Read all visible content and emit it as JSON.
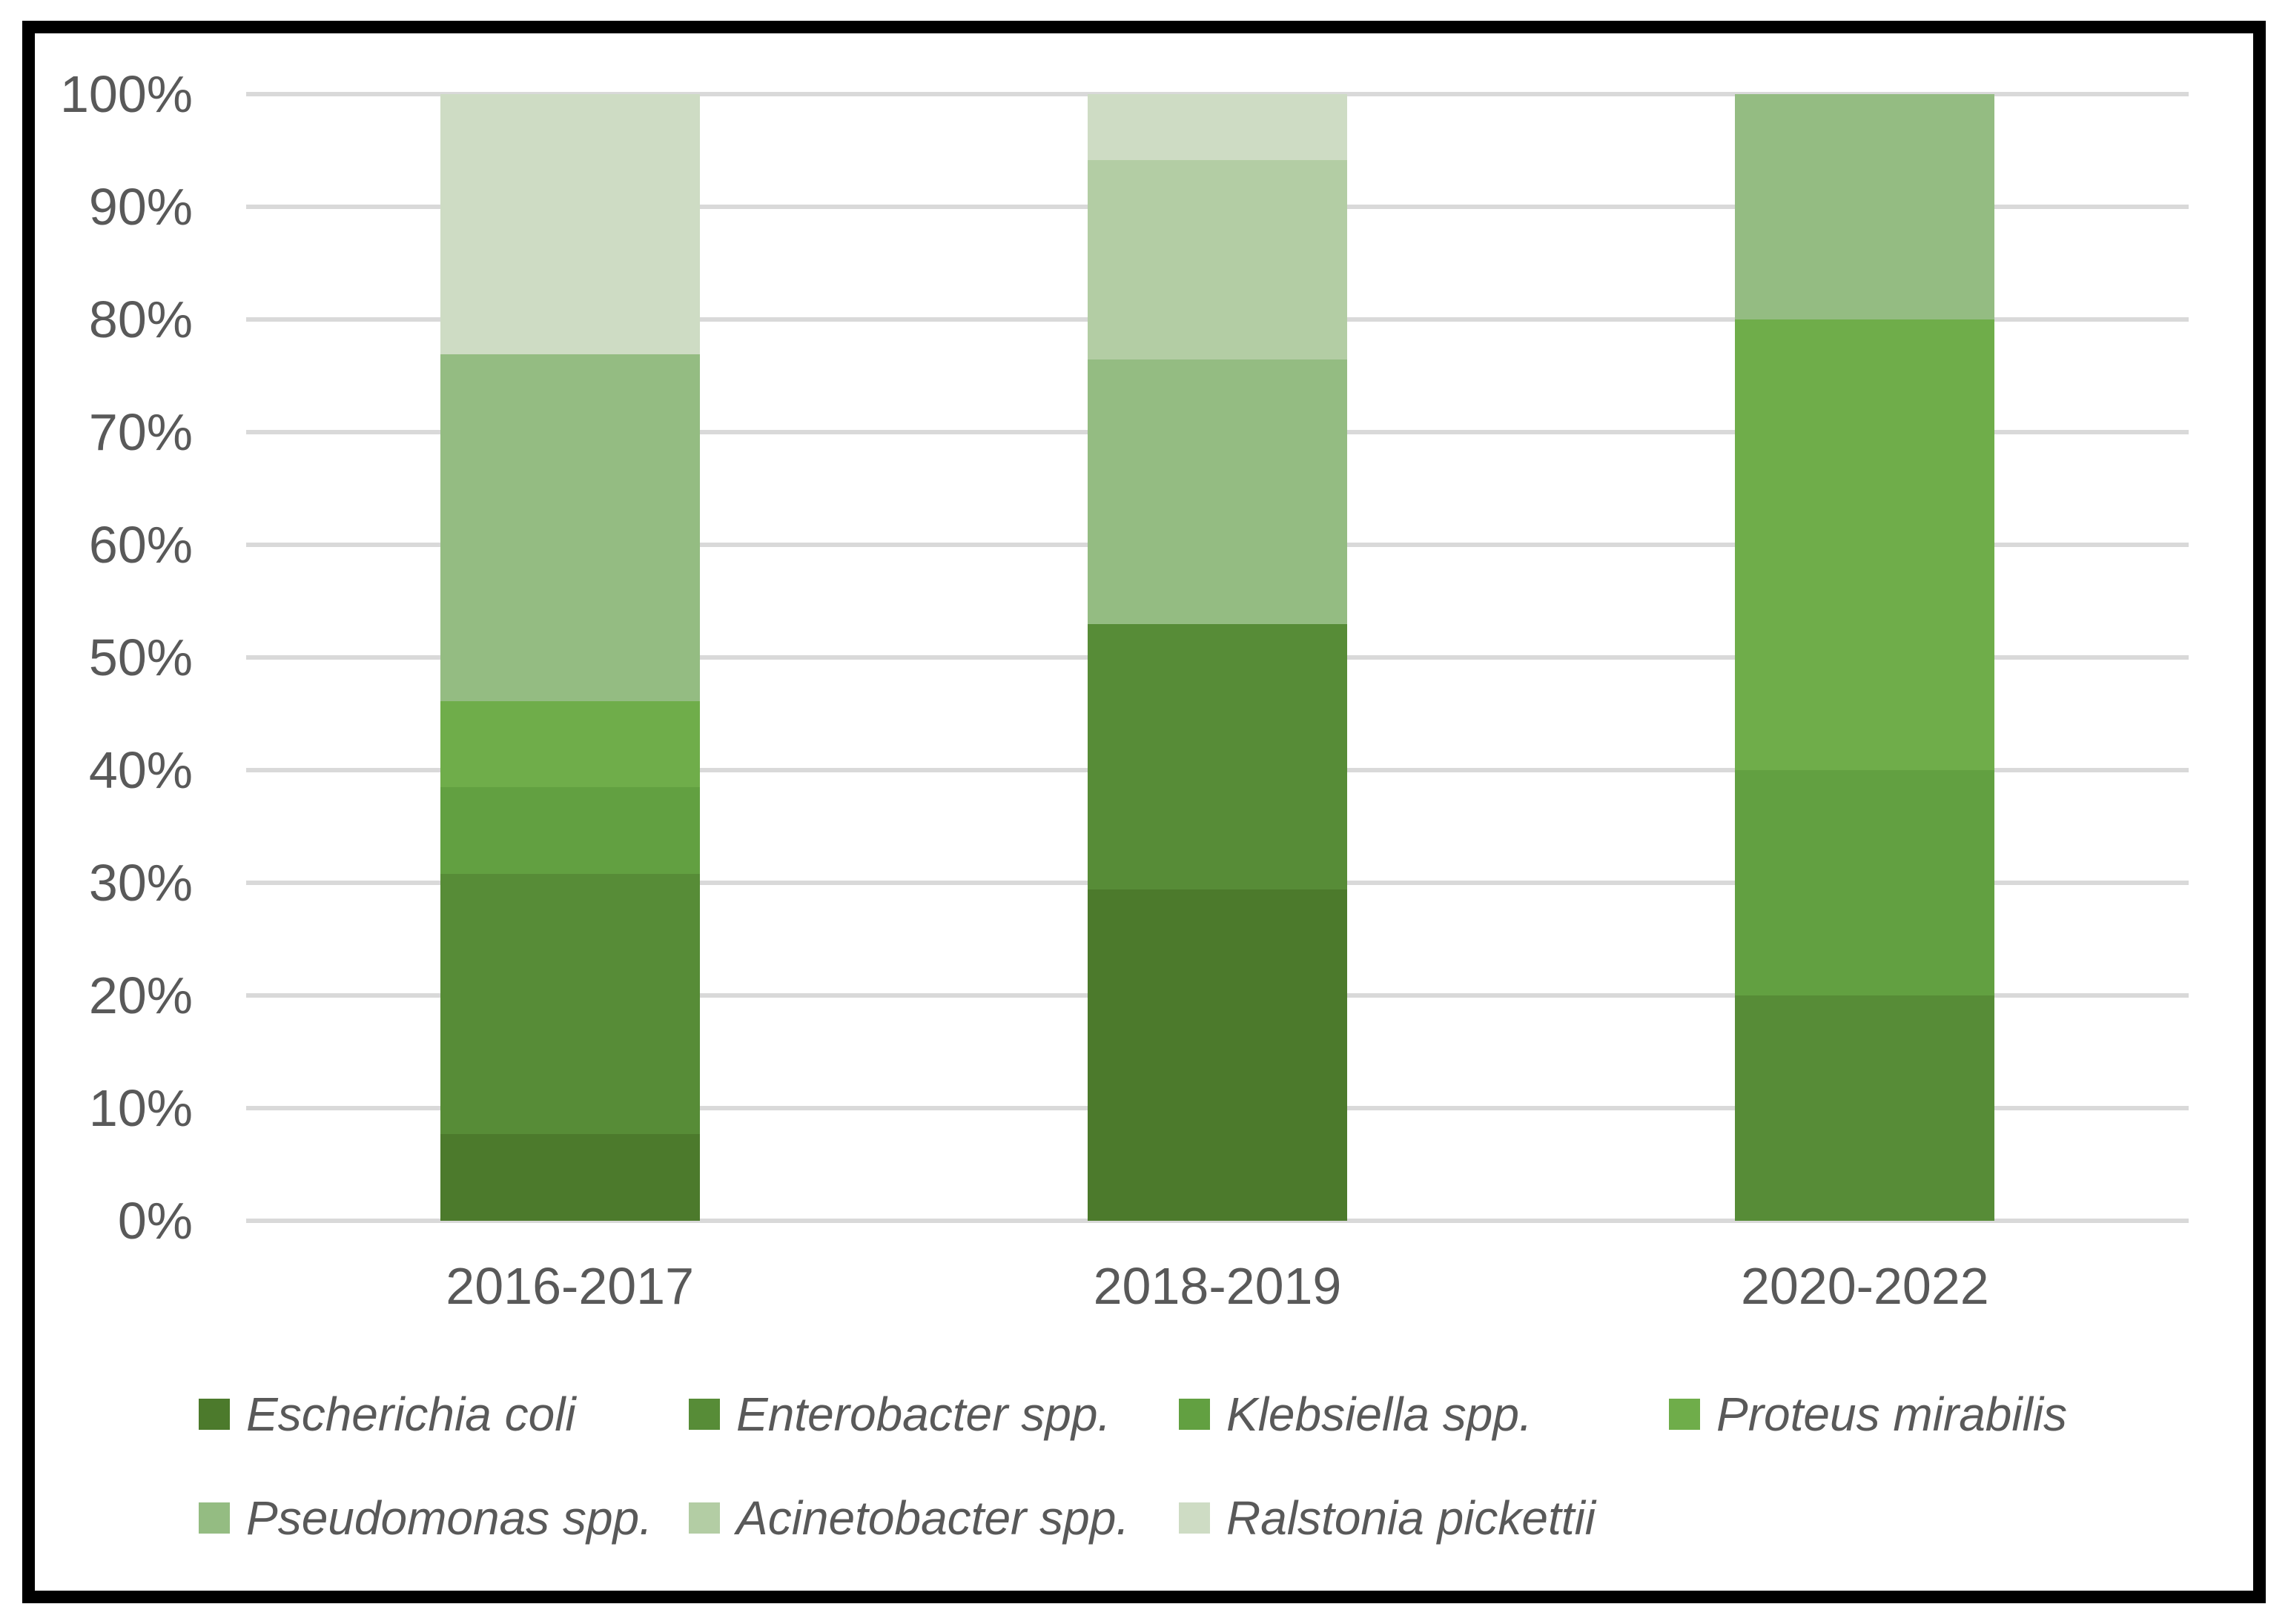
{
  "figure": {
    "background_color": "#ffffff",
    "border_color": "#000000",
    "text_color": "#595959",
    "gridline_color": "#d9d9d9"
  },
  "chart_data": {
    "type": "bar",
    "subtype": "stacked-100-percent",
    "title": "",
    "xlabel": "",
    "ylabel": "",
    "categories": [
      "2016-2017",
      "2018-2019",
      "2020-2022"
    ],
    "series": [
      {
        "name": "Escherichia coli",
        "color": "#4C7A2C",
        "values": [
          7.69,
          29.41,
          0
        ]
      },
      {
        "name": "Enterobacter spp.",
        "color": "#578C37",
        "values": [
          23.08,
          23.53,
          20
        ]
      },
      {
        "name": "Klebsiella spp.",
        "color": "#62A041",
        "values": [
          7.69,
          0,
          20
        ]
      },
      {
        "name": "Proteus mirabilis",
        "color": "#6FAD4A",
        "values": [
          7.69,
          0,
          40
        ]
      },
      {
        "name": "Pseudomonas spp.",
        "color": "#94BC82",
        "values": [
          30.77,
          23.53,
          20
        ]
      },
      {
        "name": "Acinetobacter spp.",
        "color": "#B3CDA4",
        "values": [
          0,
          17.65,
          0
        ]
      },
      {
        "name": "Ralstonia pickettii",
        "color": "#CEDCC4",
        "values": [
          23.08,
          5.88,
          0
        ]
      }
    ],
    "y_ticks_top_to_bottom": [
      "100%",
      "90%",
      "80%",
      "70%",
      "60%",
      "50%",
      "40%",
      "30%",
      "20%",
      "10%",
      "0%"
    ],
    "ylim": [
      0,
      100
    ],
    "grid": true,
    "legend_position": "bottom",
    "legend_rows": [
      [
        0,
        1,
        2,
        3
      ],
      [
        4,
        5,
        6
      ]
    ]
  }
}
